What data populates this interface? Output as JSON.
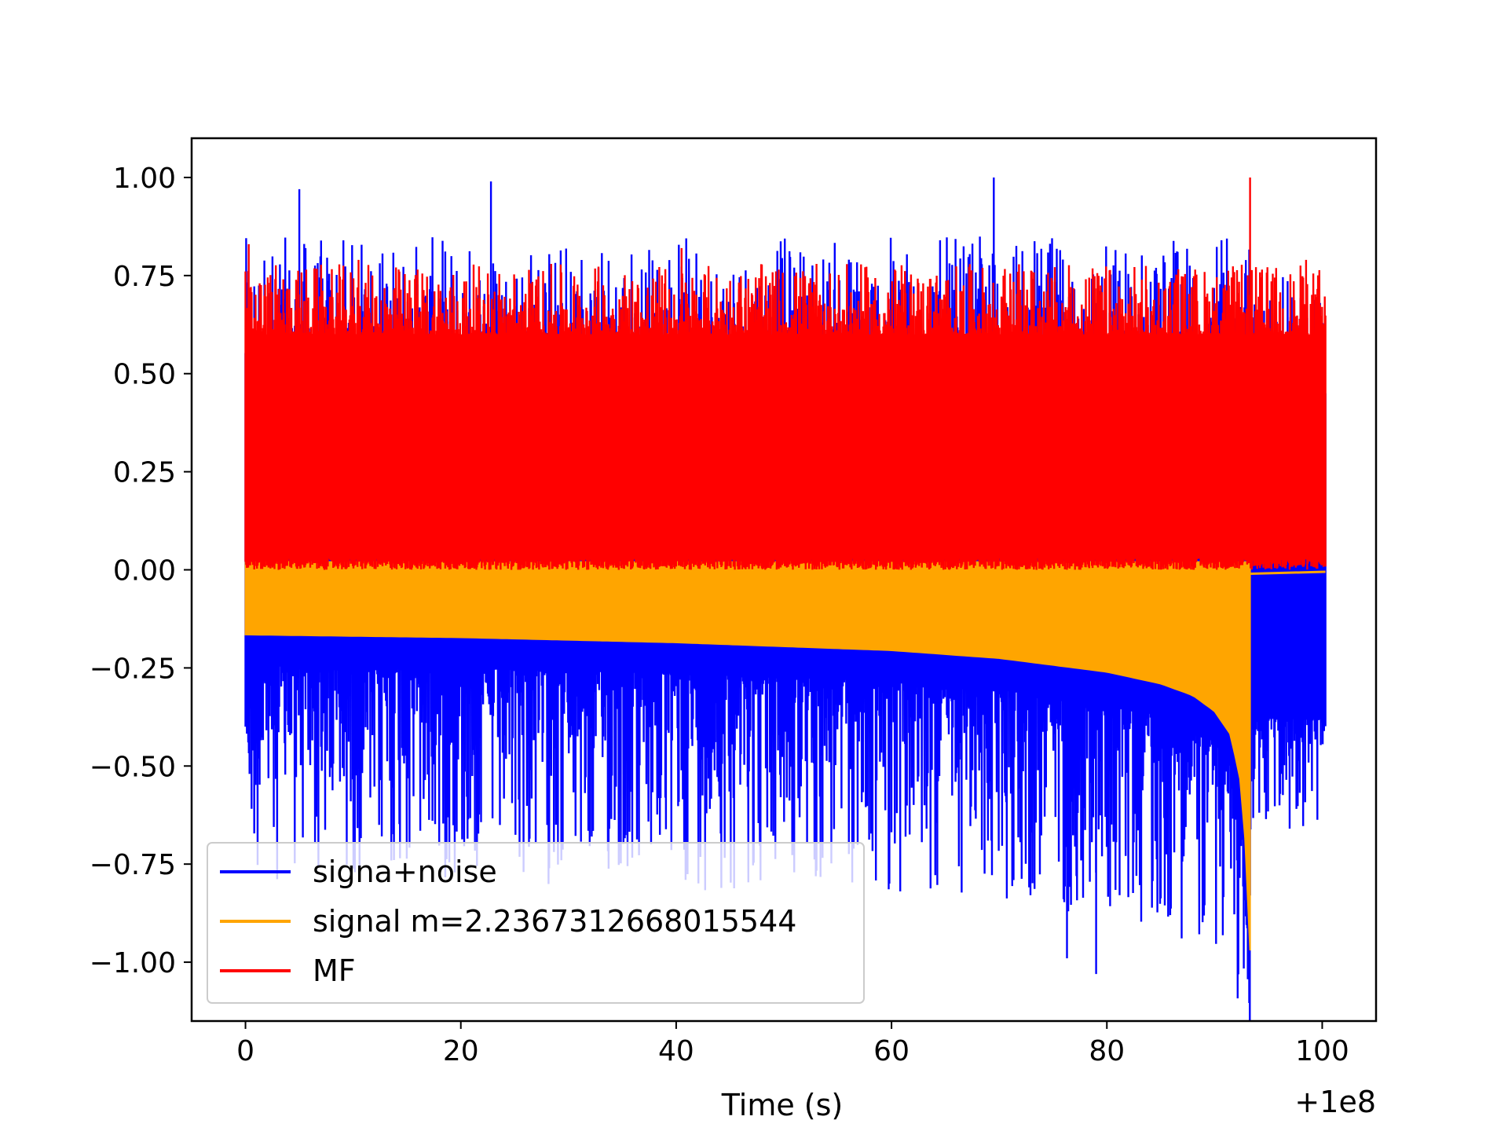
{
  "chart_data": {
    "type": "line",
    "title": "",
    "xlabel": "Time (s)",
    "ylabel": "",
    "x_offset_label": "+1e8",
    "xlim": [
      -5,
      105
    ],
    "ylim": [
      -1.15,
      1.1
    ],
    "xticks": [
      0,
      20,
      40,
      60,
      80,
      100
    ],
    "xtick_labels": [
      "0",
      "20",
      "40",
      "60",
      "80",
      "100"
    ],
    "yticks": [
      1.0,
      0.75,
      0.5,
      0.25,
      0.0,
      -0.25,
      -0.5,
      -0.75,
      -1.0
    ],
    "ytick_labels": [
      "1.00",
      "0.75",
      "0.50",
      "0.25",
      "0.00",
      "−0.25",
      "−0.50",
      "−0.75",
      "−1.00"
    ],
    "grid": false,
    "legend_position": "lower-left",
    "series": [
      {
        "name": "signa+noise",
        "color": "#0000ff",
        "x_start": 0.0,
        "x_end": 100.3,
        "approx_range": [
          -1.03,
          1.0
        ],
        "peak_points": [
          [
            5.0,
            0.97
          ],
          [
            22.8,
            0.99
          ],
          [
            69.5,
            1.0
          ],
          [
            79.0,
            -1.03
          ],
          [
            76.3,
            -0.99
          ],
          [
            93.3,
            -0.83
          ]
        ]
      },
      {
        "name": "signal m=2.2367312668015544",
        "color": "#ffa500",
        "x_start": 0.0,
        "x_end": 100.3,
        "envelope_lower": [
          [
            0.0,
            -0.165
          ],
          [
            20.0,
            -0.172
          ],
          [
            40.0,
            -0.185
          ],
          [
            60.0,
            -0.205
          ],
          [
            70.0,
            -0.225
          ],
          [
            80.0,
            -0.26
          ],
          [
            85.0,
            -0.29
          ],
          [
            88.0,
            -0.32
          ],
          [
            90.0,
            -0.36
          ],
          [
            91.5,
            -0.42
          ],
          [
            92.5,
            -0.55
          ],
          [
            93.0,
            -0.75
          ],
          [
            93.3,
            -0.97
          ]
        ],
        "envelope_upper": [
          [
            0.0,
            0.02
          ],
          [
            93.3,
            0.02
          ],
          [
            93.5,
            -0.01
          ],
          [
            100.3,
            -0.005
          ]
        ],
        "min_point": [
          93.3,
          -0.97
        ]
      },
      {
        "name": "MF",
        "color": "#ff0000",
        "x_start": 0.0,
        "x_end": 100.3,
        "approx_range": [
          0.0,
          1.0
        ],
        "peak_points": [
          [
            0.3,
            0.83
          ],
          [
            10.5,
            0.79
          ],
          [
            40.5,
            0.82
          ],
          [
            93.3,
            1.0
          ],
          [
            98.5,
            0.79
          ]
        ]
      }
    ]
  }
}
